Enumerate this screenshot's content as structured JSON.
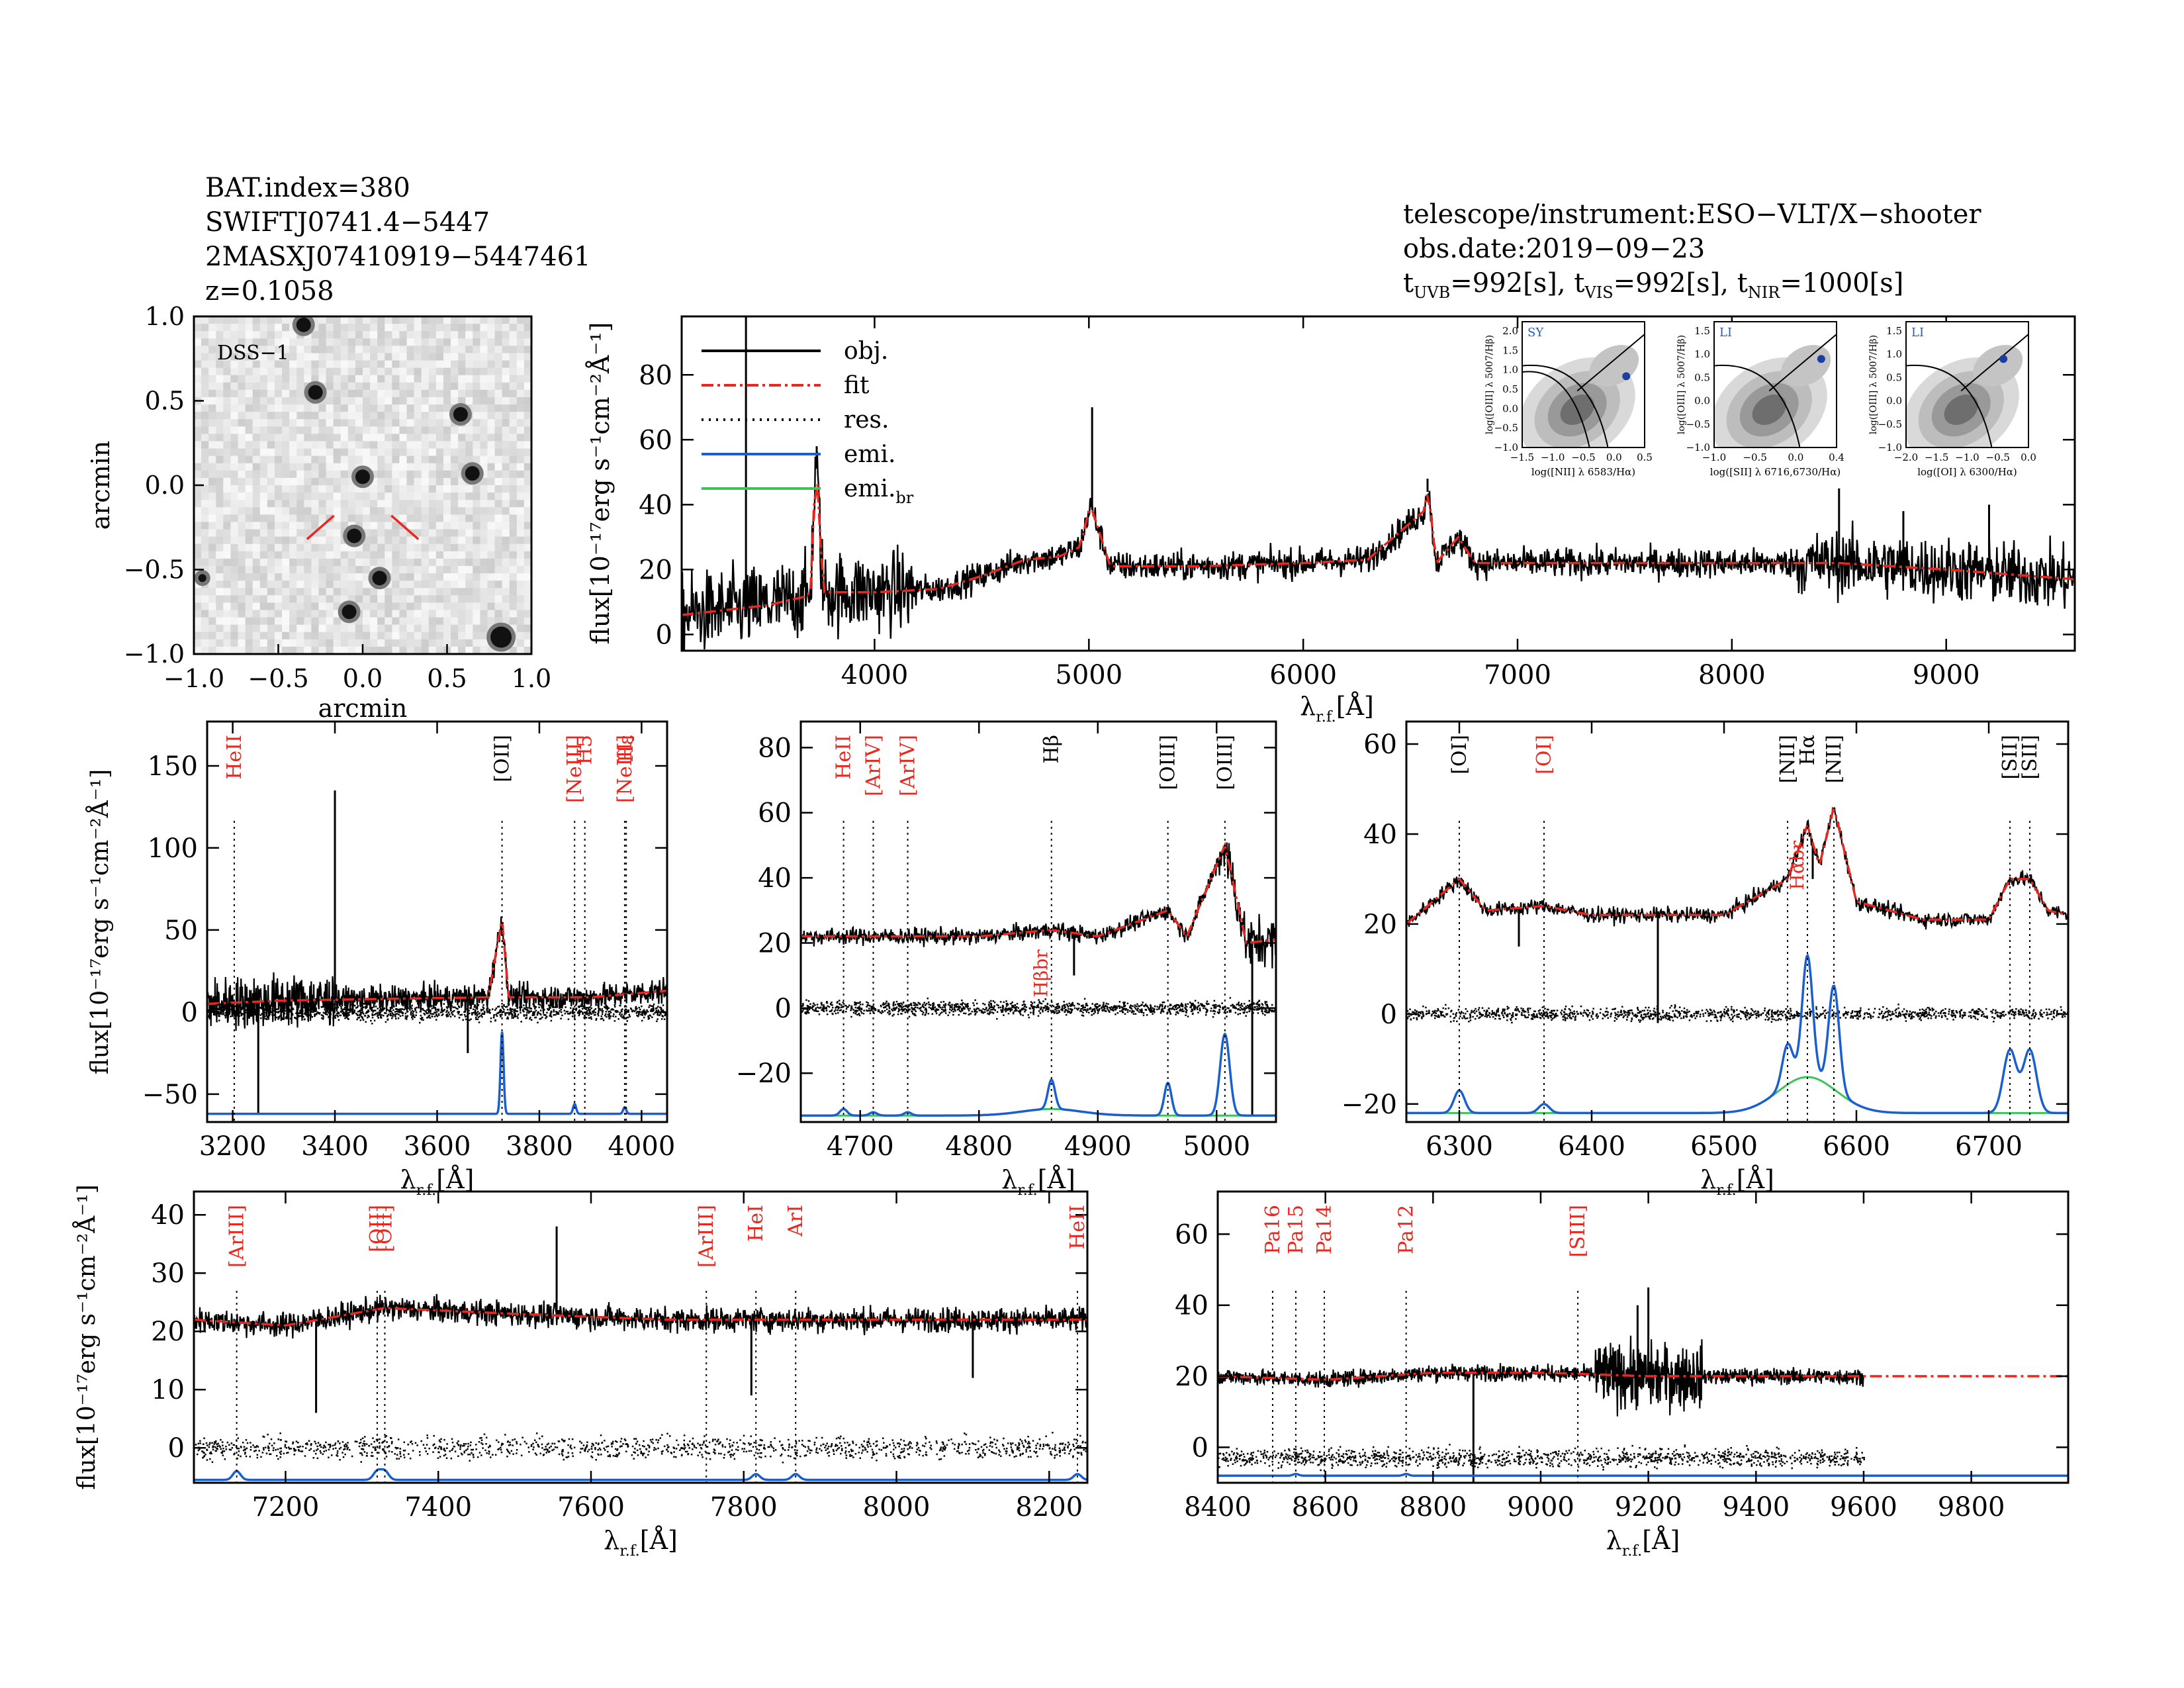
{
  "header": {
    "left_lines": [
      "BAT.index=380",
      "SWIFTJ0741.4−5447",
      "2MASXJ07410919−5447461",
      "z=0.1058"
    ],
    "telescope": "telescope/instrument:ESO−VLT/X−shooter",
    "obs_date": "obs.date:2019−09−23",
    "exposure": {
      "t": "t",
      "uvb": "UVB",
      "uvb_val": "=992[s], ",
      "vis": "VIS",
      "vis_val": "=992[s], ",
      "nir": "NIR",
      "nir_val": "=1000[s]"
    }
  },
  "colors": {
    "obj": "#000000",
    "fit": "#e8281e",
    "res": "#000000",
    "emi": "#1a5fd0",
    "emi_br": "#3cc35a",
    "line_red": "#e8281e"
  },
  "chart_data": [
    {
      "id": "dss",
      "type": "image",
      "label": "DSS−1",
      "xlabel": "arcmin",
      "ylabel": "arcmin",
      "xlim": [
        -1.0,
        1.0
      ],
      "ylim": [
        -1.0,
        1.0
      ],
      "xticks": [
        "−1.0",
        "−0.5",
        "0.0",
        "0.5",
        "1.0"
      ],
      "yticks": [
        "1.0",
        "0.5",
        "0.0",
        "−0.5",
        "−1.0"
      ],
      "sources": [
        [
          -0.35,
          0.95
        ],
        [
          -0.28,
          0.55
        ],
        [
          0.58,
          0.42
        ],
        [
          0.0,
          0.05
        ],
        [
          0.65,
          0.07
        ],
        [
          -0.05,
          -0.3
        ],
        [
          0.1,
          -0.55
        ],
        [
          -0.08,
          -0.75
        ],
        [
          0.82,
          -0.9
        ],
        [
          -0.95,
          -0.55
        ]
      ]
    },
    {
      "id": "full",
      "type": "line",
      "xlabel": "λr.f.[Å]",
      "ylabel": "flux[10⁻¹⁷erg s⁻¹cm⁻²Å⁻¹]",
      "xlim": [
        3100,
        9600
      ],
      "ylim": [
        -5,
        98
      ],
      "xticks": [
        4000,
        5000,
        6000,
        7000,
        8000,
        9000
      ],
      "yticks": [
        0,
        20,
        40,
        60,
        80
      ],
      "legend": [
        "obj.",
        "fit",
        "res.",
        "emi.",
        "emi.br"
      ],
      "fit_nodes": [
        [
          3100,
          6
        ],
        [
          3500,
          9
        ],
        [
          3700,
          12
        ],
        [
          3727,
          55
        ],
        [
          3760,
          13
        ],
        [
          4000,
          13
        ],
        [
          4300,
          14
        ],
        [
          4500,
          18
        ],
        [
          4700,
          23
        ],
        [
          4861,
          24
        ],
        [
          4959,
          27
        ],
        [
          5007,
          40
        ],
        [
          5100,
          21
        ],
        [
          5500,
          21
        ],
        [
          6000,
          22
        ],
        [
          6300,
          23
        ],
        [
          6563,
          38
        ],
        [
          6583,
          45
        ],
        [
          6620,
          22
        ],
        [
          6724,
          30
        ],
        [
          6800,
          22
        ],
        [
          7500,
          22
        ],
        [
          8000,
          22
        ],
        [
          8500,
          22
        ],
        [
          9000,
          20
        ],
        [
          9600,
          17
        ]
      ],
      "spikes": [
        [
          3400,
          98
        ],
        [
          3730,
          58
        ],
        [
          5015,
          70
        ],
        [
          6580,
          48
        ],
        [
          8500,
          45
        ],
        [
          8800,
          38
        ],
        [
          9200,
          40
        ]
      ]
    },
    {
      "id": "p1",
      "type": "line",
      "xlabel": "λr.f.[Å]",
      "ylabel": "flux[10⁻¹⁷erg s⁻¹cm⁻²Å⁻¹]",
      "xlim": [
        3150,
        4050
      ],
      "ylim": [
        -67,
        177
      ],
      "xticks": [
        3200,
        3400,
        3600,
        3800,
        4000
      ],
      "yticks": [
        150,
        100,
        50,
        0,
        -50
      ],
      "lines": [
        {
          "x": 3203,
          "label": "HeII",
          "color": "red"
        },
        {
          "x": 3727,
          "label": "[OII]",
          "color": "black"
        },
        {
          "x": 3869,
          "label": "[NeIII]",
          "color": "red"
        },
        {
          "x": 3889,
          "label": "H5",
          "color": "red"
        },
        {
          "x": 3967,
          "label": "[NeIII]",
          "color": "red"
        },
        {
          "x": 3970,
          "label": "Hε",
          "color": "red"
        }
      ],
      "fit_nodes": [
        [
          3150,
          5
        ],
        [
          3300,
          7
        ],
        [
          3500,
          8
        ],
        [
          3700,
          9
        ],
        [
          3727,
          57
        ],
        [
          3740,
          9
        ],
        [
          3900,
          9
        ],
        [
          4050,
          13
        ]
      ],
      "emission": [
        {
          "x": 3727,
          "amp": 50,
          "w": 3
        },
        {
          "x": 3869,
          "amp": 6,
          "w": 3
        },
        {
          "x": 3967,
          "amp": 4,
          "w": 3
        }
      ],
      "emi_base": -62,
      "spikes": [
        [
          3400,
          135
        ],
        [
          3250,
          -62
        ],
        [
          3660,
          -25
        ]
      ]
    },
    {
      "id": "p2",
      "type": "line",
      "xlabel": "λr.f.[Å]",
      "ylabel": "",
      "xlim": [
        4650,
        5050
      ],
      "ylim": [
        -35,
        88
      ],
      "xticks": [
        4700,
        4800,
        4900,
        5000
      ],
      "yticks": [
        80,
        60,
        40,
        20,
        0,
        -20
      ],
      "lines": [
        {
          "x": 4686,
          "label": "HeII",
          "color": "red"
        },
        {
          "x": 4711,
          "label": "[ArIV]",
          "color": "red"
        },
        {
          "x": 4740,
          "label": "[ArIV]",
          "color": "red"
        },
        {
          "x": 4861,
          "label": "Hβ",
          "color": "black"
        },
        {
          "x": 4959,
          "label": "[OIII]",
          "color": "black"
        },
        {
          "x": 5007,
          "label": "[OIII]",
          "color": "black"
        }
      ],
      "extra_label": {
        "x": 4861,
        "y": 20,
        "label": "Hβbr"
      },
      "fit_nodes": [
        [
          4650,
          22
        ],
        [
          4800,
          22
        ],
        [
          4861,
          24
        ],
        [
          4900,
          22
        ],
        [
          4959,
          30
        ],
        [
          4975,
          22
        ],
        [
          5007,
          50
        ],
        [
          5025,
          20
        ],
        [
          5050,
          21
        ]
      ],
      "emission": [
        {
          "x": 4686,
          "amp": 2,
          "w": 3
        },
        {
          "x": 4711,
          "amp": 1,
          "w": 3
        },
        {
          "x": 4740,
          "amp": 1,
          "w": 3
        },
        {
          "x": 4861,
          "amp": 9,
          "w": 3
        },
        {
          "x": 4959,
          "amp": 10,
          "w": 3
        },
        {
          "x": 5007,
          "amp": 25,
          "w": 4
        }
      ],
      "broad": [
        {
          "x": 4861,
          "amp": 2,
          "w": 25
        }
      ],
      "emi_base": -33,
      "spikes": [
        [
          5030,
          -33
        ],
        [
          4880,
          10
        ]
      ]
    },
    {
      "id": "p3",
      "type": "line",
      "xlabel": "λr.f.[Å]",
      "ylabel": "",
      "xlim": [
        6260,
        6760
      ],
      "ylim": [
        -24,
        65
      ],
      "xticks": [
        6300,
        6400,
        6500,
        6600,
        6700
      ],
      "yticks": [
        60,
        40,
        20,
        0,
        -20
      ],
      "lines": [
        {
          "x": 6300,
          "label": "[OI]",
          "color": "black"
        },
        {
          "x": 6364,
          "label": "[OI]",
          "color": "red"
        },
        {
          "x": 6548,
          "label": "[NII]",
          "color": "black"
        },
        {
          "x": 6563,
          "label": "Hα",
          "color": "black"
        },
        {
          "x": 6583,
          "label": "[NII]",
          "color": "black"
        },
        {
          "x": 6716,
          "label": "[SII]",
          "color": "black"
        },
        {
          "x": 6731,
          "label": "[SII]",
          "color": "black"
        }
      ],
      "extra_label": {
        "x": 6563,
        "y": 40,
        "label": "Hαbr"
      },
      "fit_nodes": [
        [
          6260,
          20
        ],
        [
          6300,
          30
        ],
        [
          6320,
          23
        ],
        [
          6364,
          24
        ],
        [
          6400,
          22
        ],
        [
          6500,
          22
        ],
        [
          6548,
          30
        ],
        [
          6563,
          42
        ],
        [
          6572,
          33
        ],
        [
          6583,
          46
        ],
        [
          6600,
          25
        ],
        [
          6650,
          21
        ],
        [
          6700,
          21
        ],
        [
          6716,
          30
        ],
        [
          6731,
          30
        ],
        [
          6745,
          23
        ],
        [
          6760,
          22
        ]
      ],
      "emission": [
        {
          "x": 6300,
          "amp": 5,
          "w": 4
        },
        {
          "x": 6364,
          "amp": 2,
          "w": 4
        },
        {
          "x": 6548,
          "amp": 9,
          "w": 4
        },
        {
          "x": 6563,
          "amp": 27,
          "w": 4
        },
        {
          "x": 6583,
          "amp": 23,
          "w": 4
        },
        {
          "x": 6716,
          "amp": 14,
          "w": 5
        },
        {
          "x": 6731,
          "amp": 14,
          "w": 5
        }
      ],
      "broad": [
        {
          "x": 6563,
          "amp": 8,
          "w": 22
        }
      ],
      "emi_base": -22,
      "spikes": [
        [
          6345,
          15
        ],
        [
          6450,
          -2
        ],
        [
          6567,
          30
        ]
      ]
    },
    {
      "id": "p4",
      "type": "line",
      "xlabel": "λr.f.[Å]",
      "ylabel": "flux[10⁻¹⁷erg s⁻¹cm⁻²Å⁻¹]",
      "xlim": [
        7080,
        8250
      ],
      "ylim": [
        -6,
        44
      ],
      "xticks": [
        7200,
        7400,
        7600,
        7800,
        8000,
        8200
      ],
      "yticks": [
        40,
        30,
        20,
        10,
        0
      ],
      "lines": [
        {
          "x": 7136,
          "label": "[ArIII]",
          "color": "red"
        },
        {
          "x": 7320,
          "label": "[OII]",
          "color": "red"
        },
        {
          "x": 7330,
          "label": "[OII]",
          "color": "red"
        },
        {
          "x": 7751,
          "label": "[ArIII]",
          "color": "red"
        },
        {
          "x": 7816,
          "label": "HeI",
          "color": "red"
        },
        {
          "x": 7868,
          "label": "ArI",
          "color": "red"
        },
        {
          "x": 8237,
          "label": "HeII",
          "color": "red"
        }
      ],
      "fit_nodes": [
        [
          7080,
          22
        ],
        [
          7200,
          21
        ],
        [
          7330,
          24
        ],
        [
          7500,
          23
        ],
        [
          7700,
          22
        ],
        [
          8000,
          22
        ],
        [
          8250,
          22
        ]
      ],
      "emission": [
        {
          "x": 7136,
          "amp": 1.5,
          "w": 5
        },
        {
          "x": 7320,
          "amp": 1.5,
          "w": 5
        },
        {
          "x": 7330,
          "amp": 1.5,
          "w": 5
        },
        {
          "x": 7816,
          "amp": 1,
          "w": 5
        },
        {
          "x": 7868,
          "amp": 1,
          "w": 5
        },
        {
          "x": 8237,
          "amp": 1,
          "w": 5
        }
      ],
      "emi_base": -5.5,
      "spikes": [
        [
          7240,
          6
        ],
        [
          7810,
          9
        ],
        [
          8100,
          12
        ],
        [
          7555,
          38
        ]
      ]
    },
    {
      "id": "p5",
      "type": "line",
      "xlabel": "λr.f.[Å]",
      "ylabel": "",
      "xlim": [
        8400,
        9980
      ],
      "ylim": [
        -10,
        72
      ],
      "xticks": [
        8400,
        8600,
        8800,
        9000,
        9200,
        9400,
        9600,
        9800
      ],
      "yticks": [
        60,
        40,
        20,
        0
      ],
      "lines": [
        {
          "x": 8502,
          "label": "Pa16",
          "color": "red"
        },
        {
          "x": 8545,
          "label": "Pa15",
          "color": "red"
        },
        {
          "x": 8598,
          "label": "Pa14",
          "color": "red"
        },
        {
          "x": 8750,
          "label": "Pa12",
          "color": "red"
        },
        {
          "x": 9069,
          "label": "[SIII]",
          "color": "red"
        }
      ],
      "fit_nodes": [
        [
          8400,
          20
        ],
        [
          8600,
          19
        ],
        [
          8800,
          21
        ],
        [
          9000,
          21
        ],
        [
          9200,
          20
        ],
        [
          9400,
          20
        ],
        [
          9600,
          20
        ]
      ],
      "obj_end": 9600,
      "emission": [
        {
          "x": 8545,
          "amp": 0.5,
          "w": 5
        },
        {
          "x": 8750,
          "amp": 0.5,
          "w": 5
        }
      ],
      "emi_base": -8,
      "spikes": [
        [
          8875,
          -10
        ],
        [
          9200,
          45
        ],
        [
          9180,
          40
        ]
      ]
    }
  ],
  "bpt": [
    {
      "label": "SY",
      "xlabel": "log([NII] λ 6583/Hα)",
      "ylabel": "log([OIII] λ 5007/Hβ)",
      "xticks": [
        "−1.5",
        "−1.0",
        "−0.5",
        "0.0",
        "0.5"
      ],
      "yticks": [
        "2.0",
        "1.5",
        "1.0",
        "0.5",
        "0.0",
        "−0.5",
        "−1.0"
      ],
      "xlim": [
        -1.5,
        0.5
      ],
      "ylim": [
        -1.0,
        2.0
      ],
      "point": [
        0.2,
        0.7
      ]
    },
    {
      "label": "LI",
      "xlabel": "log([SII] λ 6716,6730/Hα)",
      "ylabel": "log([OIII] λ 5007/Hβ)",
      "xticks": [
        "−1.0",
        "−0.5",
        "0.0",
        "0.4"
      ],
      "yticks": [
        "1.5",
        "1.0",
        "0.5",
        "0.0",
        "−0.5",
        "−1.0"
      ],
      "xlim": [
        -1.2,
        0.4
      ],
      "ylim": [
        -1.2,
        1.5
      ],
      "point": [
        0.2,
        0.7
      ]
    },
    {
      "label": "LI",
      "xlabel": "log([OI] λ 6300/Hα)",
      "ylabel": "log([OIII] λ 5007/Hβ)",
      "xticks": [
        "−2.0",
        "−1.5",
        "−1.0",
        "−0.5",
        "0.0"
      ],
      "yticks": [
        "1.5",
        "1.0",
        "0.5",
        "0.0",
        "−0.5",
        "−1.0"
      ],
      "xlim": [
        -2.2,
        0.0
      ],
      "ylim": [
        -1.2,
        1.5
      ],
      "point": [
        -0.45,
        0.7
      ]
    }
  ]
}
